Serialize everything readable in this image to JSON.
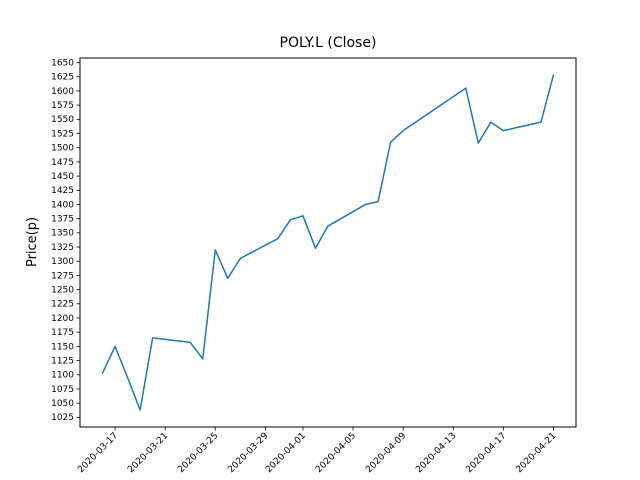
{
  "figure": {
    "background": "#ffffff",
    "axes_background": "#ffffff",
    "spine_color": "#000000"
  },
  "chart_data": {
    "type": "line",
    "title": "POLY.L (Close)",
    "ylabel": "Price(p)",
    "xlabel": "",
    "grid": false,
    "legend_position": "none",
    "line_width": 1.5,
    "series": [
      {
        "name": "Close",
        "color": "#1f77b4",
        "x": [
          "2020-03-16",
          "2020-03-17",
          "2020-03-18",
          "2020-03-19",
          "2020-03-20",
          "2020-03-23",
          "2020-03-24",
          "2020-03-25",
          "2020-03-26",
          "2020-03-27",
          "2020-03-30",
          "2020-03-31",
          "2020-04-01",
          "2020-04-02",
          "2020-04-03",
          "2020-04-06",
          "2020-04-07",
          "2020-04-08",
          "2020-04-09",
          "2020-04-14",
          "2020-04-15",
          "2020-04-16",
          "2020-04-17",
          "2020-04-20",
          "2020-04-21"
        ],
        "values": [
          1103,
          1150,
          1095,
          1038,
          1165,
          1157,
          1128,
          1320,
          1270,
          1305,
          1340,
          1373,
          1380,
          1323,
          1362,
          1400,
          1405,
          1510,
          1530,
          1605,
          1508,
          1545,
          1530,
          1545,
          1628
        ]
      }
    ],
    "x_ticks": [
      "2020-03-17",
      "2020-03-21",
      "2020-03-25",
      "2020-03-29",
      "2020-04-01",
      "2020-04-05",
      "2020-04-09",
      "2020-04-13",
      "2020-04-17",
      "2020-04-21"
    ],
    "x_tick_rotation": 45,
    "y_ticks": [
      1025,
      1050,
      1075,
      1100,
      1125,
      1150,
      1175,
      1200,
      1225,
      1250,
      1275,
      1300,
      1325,
      1350,
      1375,
      1400,
      1425,
      1450,
      1475,
      1500,
      1525,
      1550,
      1575,
      1600,
      1625,
      1650
    ],
    "ylim": [
      1008,
      1658
    ],
    "xlim_margin_days": 1.8
  }
}
